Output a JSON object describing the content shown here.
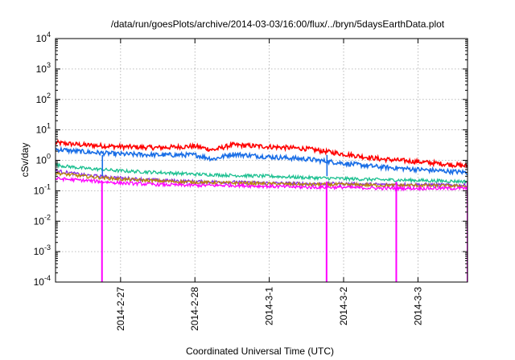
{
  "chart_data": {
    "type": "line",
    "title": "/data/run/goesPlots/archive/2014-03-03/16:00/flux/../bryn/5daysEarthData.plot",
    "xlabel": "Coordinated Universal Time (UTC)",
    "ylabel": "cSv/day",
    "y_scale": "log",
    "ylim": [
      0.0001,
      10000
    ],
    "y_ticks": [
      {
        "base": "10",
        "exp": "-4",
        "value": 0.0001
      },
      {
        "base": "10",
        "exp": "-3",
        "value": 0.001
      },
      {
        "base": "10",
        "exp": "-2",
        "value": 0.01
      },
      {
        "base": "10",
        "exp": "-1",
        "value": 0.1
      },
      {
        "base": "10",
        "exp": "0",
        "value": 1
      },
      {
        "base": "10",
        "exp": "1",
        "value": 10
      },
      {
        "base": "10",
        "exp": "2",
        "value": 100
      },
      {
        "base": "10",
        "exp": "3",
        "value": 1000
      },
      {
        "base": "10",
        "exp": "4",
        "value": 10000
      }
    ],
    "xlim": [
      "2014-02-26 03:00",
      "2014-03-03 16:00"
    ],
    "x_ticks": [
      {
        "label": "2014-2-27",
        "value": "2014-02-27 00:00"
      },
      {
        "label": "2014-2-28",
        "value": "2014-02-28 00:00"
      },
      {
        "label": "2014-3-1",
        "value": "2014-03-01 00:00"
      },
      {
        "label": "2014-3-2",
        "value": "2014-03-02 00:00"
      },
      {
        "label": "2014-3-3",
        "value": "2014-03-03 00:00"
      }
    ],
    "grid": true,
    "series": [
      {
        "color": "#ff0000",
        "x": [
          "2014-02-26 03:00",
          "2014-02-26 12:00",
          "2014-02-27 00:00",
          "2014-02-27 12:00",
          "2014-02-28 00:00",
          "2014-02-28 06:00",
          "2014-02-28 12:00",
          "2014-03-01 00:00",
          "2014-03-01 12:00",
          "2014-03-02 00:00",
          "2014-03-02 12:00",
          "2014-03-03 00:00",
          "2014-03-03 16:00"
        ],
        "values": [
          3.8,
          3.2,
          2.8,
          2.6,
          2.9,
          2.2,
          3.2,
          2.8,
          2.4,
          1.6,
          1.1,
          0.9,
          0.65
        ]
      },
      {
        "color": "#1a6ee6",
        "x": [
          "2014-02-26 03:00",
          "2014-02-26 12:00",
          "2014-02-27 00:00",
          "2014-02-27 12:00",
          "2014-02-28 00:00",
          "2014-02-28 06:00",
          "2014-02-28 12:00",
          "2014-03-01 00:00",
          "2014-03-01 12:00",
          "2014-03-02 00:00",
          "2014-03-02 12:00",
          "2014-03-03 00:00",
          "2014-03-03 16:00"
        ],
        "values": [
          2.3,
          1.9,
          1.6,
          1.5,
          1.5,
          1.1,
          1.6,
          1.3,
          1.1,
          0.8,
          0.6,
          0.5,
          0.4
        ]
      },
      {
        "color": "#1abf8f",
        "x": [
          "2014-02-26 03:00",
          "2014-02-26 12:00",
          "2014-02-27 00:00",
          "2014-02-27 12:00",
          "2014-02-28 00:00",
          "2014-02-28 12:00",
          "2014-03-01 00:00",
          "2014-03-01 12:00",
          "2014-03-02 00:00",
          "2014-03-02 12:00",
          "2014-03-03 00:00",
          "2014-03-03 16:00"
        ],
        "values": [
          0.7,
          0.55,
          0.45,
          0.4,
          0.35,
          0.32,
          0.3,
          0.27,
          0.25,
          0.23,
          0.22,
          0.2
        ]
      },
      {
        "color": "#8a2be2",
        "x": [
          "2014-02-26 03:00",
          "2014-02-26 12:00",
          "2014-02-27 00:00",
          "2014-02-27 12:00",
          "2014-02-28 00:00",
          "2014-02-28 12:00",
          "2014-03-01 00:00",
          "2014-03-01 12:00",
          "2014-03-02 00:00",
          "2014-03-02 12:00",
          "2014-03-03 00:00",
          "2014-03-03 16:00"
        ],
        "values": [
          0.45,
          0.33,
          0.26,
          0.22,
          0.2,
          0.19,
          0.18,
          0.17,
          0.17,
          0.16,
          0.16,
          0.15
        ]
      },
      {
        "color": "#b8860b",
        "x": [
          "2014-02-26 03:00",
          "2014-02-26 12:00",
          "2014-02-27 00:00",
          "2014-02-27 12:00",
          "2014-02-28 00:00",
          "2014-02-28 12:00",
          "2014-03-01 00:00",
          "2014-03-01 12:00",
          "2014-03-02 00:00",
          "2014-03-02 12:00",
          "2014-03-03 00:00",
          "2014-03-03 16:00"
        ],
        "values": [
          0.38,
          0.3,
          0.24,
          0.21,
          0.19,
          0.18,
          0.17,
          0.16,
          0.16,
          0.15,
          0.15,
          0.14
        ]
      },
      {
        "color": "#ff00ff",
        "x": [
          "2014-02-26 03:00",
          "2014-02-26 12:00",
          "2014-02-27 00:00",
          "2014-02-27 12:00",
          "2014-02-28 00:00",
          "2014-02-28 12:00",
          "2014-03-01 00:00",
          "2014-03-01 12:00",
          "2014-03-02 00:00",
          "2014-03-02 12:00",
          "2014-03-03 00:00",
          "2014-03-03 16:00"
        ],
        "values": [
          0.25,
          0.22,
          0.18,
          0.16,
          0.15,
          0.15,
          0.14,
          0.13,
          0.13,
          0.12,
          0.12,
          0.12
        ]
      }
    ],
    "dropouts": [
      {
        "x": "2014-02-26 18:00",
        "colors": [
          "#ff00ff",
          "#1a6ee6"
        ],
        "bottom": 0.0001
      },
      {
        "x": "2014-03-01 18:30",
        "colors": [
          "#ff00ff",
          "#1a6ee6"
        ],
        "bottom": 0.0001
      },
      {
        "x": "2014-03-02 17:00",
        "colors": [
          "#ff00ff"
        ],
        "bottom": 0.0001
      },
      {
        "x": "2014-03-03 16:00",
        "colors": [
          "#ff00ff"
        ],
        "bottom": 0.0001
      }
    ]
  }
}
